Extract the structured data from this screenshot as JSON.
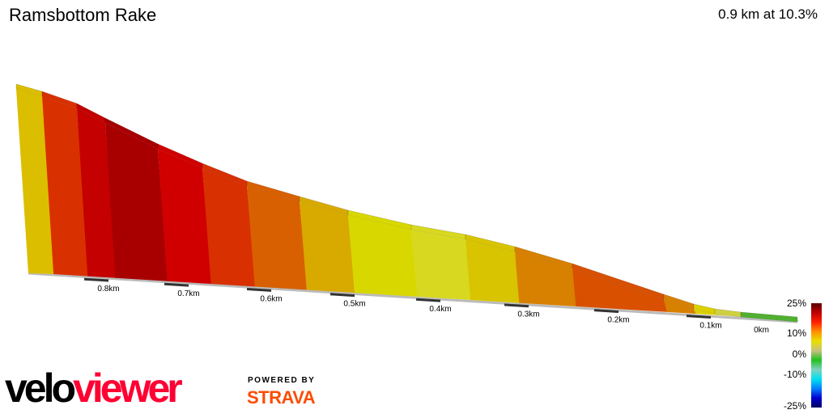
{
  "header": {
    "title": "Ramsbottom Rake",
    "summary": "0.9 km at 10.3%"
  },
  "profile": {
    "segment_colors": [
      "#dcbe00",
      "#d93000",
      "#c40000",
      "#a80000",
      "#d00000",
      "#d83000",
      "#d86000",
      "#d8aa00",
      "#d8d800",
      "#d8d820",
      "#d8c400",
      "#d88000",
      "#d85000",
      "#d88000",
      "#dcd000",
      "#d0d040",
      "#50b030"
    ],
    "distance_labels": [
      "0.8km",
      "0.7km",
      "0.6km",
      "0.5km",
      "0.4km",
      "0.3km",
      "0.2km",
      "0.1km",
      "0km"
    ]
  },
  "legend": {
    "labels": [
      "25%",
      "10%",
      "0%",
      "-10%",
      "-25%"
    ],
    "gradient_colors": [
      "#5a0000",
      "#c00000",
      "#ff2000",
      "#ff9000",
      "#e8e000",
      "#c8c080",
      "#20c020",
      "#80d0c0",
      "#00e0f0",
      "#0080ff",
      "#0000d0",
      "#000060"
    ]
  },
  "branding": {
    "logo_part1": "velo",
    "logo_part2": "viewer",
    "powered_by": "POWERED BY",
    "strava": "STRAVA",
    "logo_colors": {
      "velo": "#000000",
      "viewer": "#ff0033"
    }
  }
}
